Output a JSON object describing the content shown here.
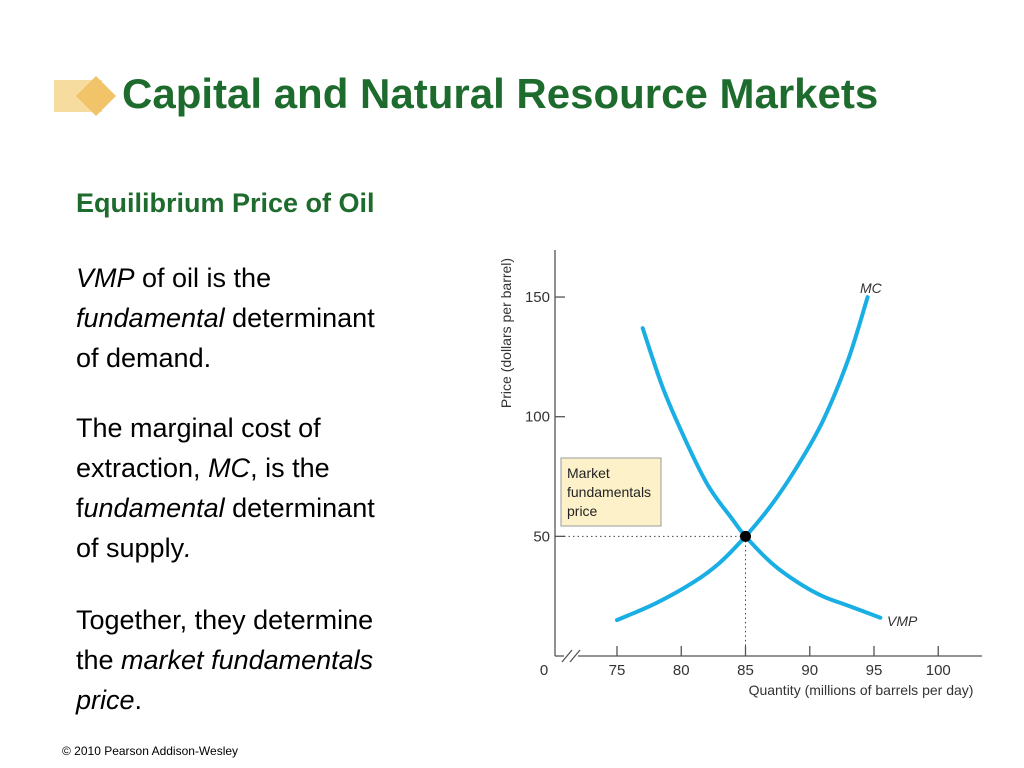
{
  "slide": {
    "title": "Capital and Natural Resource Markets",
    "subtitle": "Equilibrium Price of Oil",
    "copyright": "© 2010 Pearson Addison-Wesley",
    "title_color": "#1e6b2e",
    "logo_color": "#f2c46a",
    "paragraphs": [
      {
        "lines": [
          [
            {
              "t": "VMP",
              "i": true
            },
            {
              "t": " of oil is the",
              "i": false
            }
          ],
          [
            {
              "t": "fundamental",
              "i": true
            },
            {
              "t": " determinant",
              "i": false
            }
          ],
          [
            {
              "t": "of demand.",
              "i": false
            }
          ]
        ]
      },
      {
        "lines": [
          [
            {
              "t": "The marginal cost of",
              "i": false
            }
          ],
          [
            {
              "t": "extraction, ",
              "i": false
            },
            {
              "t": "MC",
              "i": true
            },
            {
              "t": ", is the",
              "i": false
            }
          ],
          [
            {
              "t": "f",
              "i": false
            },
            {
              "t": "undamental",
              "i": true
            },
            {
              "t": " determinant",
              "i": false
            }
          ],
          [
            {
              "t": "of supply",
              "i": false
            },
            {
              "t": ".",
              "i": true
            }
          ]
        ]
      },
      {
        "lines": [
          [
            {
              "t": "Together, they determine",
              "i": false
            }
          ],
          [
            {
              "t": "the ",
              "i": false
            },
            {
              "t": "market fundamentals",
              "i": true
            }
          ],
          [
            {
              "t": "price",
              "i": true
            },
            {
              "t": ".",
              "i": false
            }
          ]
        ]
      }
    ]
  },
  "chart_data": {
    "type": "line",
    "xlabel": "Quantity (millions of barrels per day)",
    "ylabel": "Price (dollars per barrel)",
    "x_ticks": [
      "0",
      "75",
      "80",
      "85",
      "90",
      "95",
      "100"
    ],
    "y_ticks": [
      "50",
      "100",
      "150"
    ],
    "xlim": [
      72.5,
      100
    ],
    "ylim": [
      0,
      150
    ],
    "axis_break": true,
    "curve_color": "#19aee4",
    "series": [
      {
        "name": "MC",
        "x": [
          75,
          78,
          81,
          83,
          85,
          87,
          89,
          91,
          93,
          94.5
        ],
        "y": [
          15,
          22,
          31,
          39,
          50,
          63,
          79,
          98,
          124,
          150
        ]
      },
      {
        "name": "VMP",
        "x": [
          77,
          78.5,
          80,
          82,
          84,
          85,
          87,
          89,
          91,
          93,
          95.5
        ],
        "y": [
          137,
          113,
          94,
          72,
          57,
          50,
          39,
          31,
          25,
          21,
          16
        ]
      }
    ],
    "equilibrium": {
      "x": 85,
      "y": 50
    },
    "annotation": {
      "lines": [
        "Market",
        "fundamentals",
        "price"
      ]
    }
  }
}
